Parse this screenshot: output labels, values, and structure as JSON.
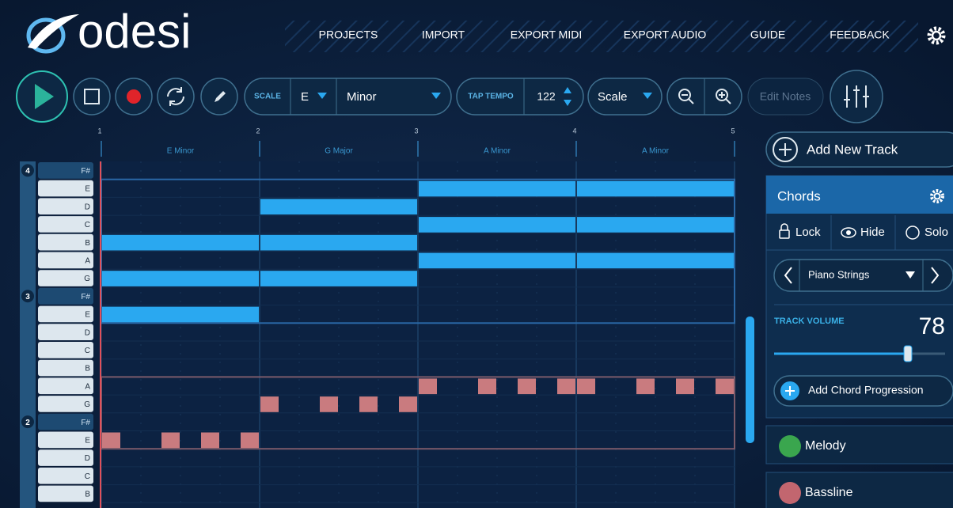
{
  "header": {
    "logo": "odesi",
    "nav": [
      "PROJECTS",
      "IMPORT",
      "EXPORT MIDI",
      "EXPORT AUDIO",
      "GUIDE",
      "FEEDBACK"
    ]
  },
  "toolbar": {
    "scale_label": "SCALE",
    "key": "E",
    "mode": "Minor",
    "tap_tempo": "TAP TEMPO",
    "tempo": "122",
    "view": "Scale",
    "edit_notes": "Edit Notes"
  },
  "timeline": {
    "bars": [
      "1",
      "2",
      "3",
      "4",
      "5"
    ],
    "chords": [
      "E Minor",
      "G Major",
      "A Minor",
      "A Minor"
    ]
  },
  "piano": {
    "octaves": [
      {
        "label": "4",
        "row": 0
      },
      {
        "label": "3",
        "row": 7
      },
      {
        "label": "2",
        "row": 14
      }
    ],
    "keys": [
      "F#",
      "E",
      "D",
      "C",
      "B",
      "A",
      "G",
      "F#",
      "E",
      "D",
      "C",
      "B",
      "A",
      "G",
      "F#",
      "E",
      "D",
      "C",
      "B"
    ]
  },
  "chord_notes": [
    {
      "row": 4,
      "start": 0,
      "length": 4
    },
    {
      "row": 6,
      "start": 0,
      "length": 4
    },
    {
      "row": 8,
      "start": 0,
      "length": 4
    },
    {
      "row": 2,
      "start": 4,
      "length": 4
    },
    {
      "row": 4,
      "start": 4,
      "length": 4
    },
    {
      "row": 6,
      "start": 4,
      "length": 4
    },
    {
      "row": 1,
      "start": 8,
      "length": 4
    },
    {
      "row": 3,
      "start": 8,
      "length": 4
    },
    {
      "row": 5,
      "start": 8,
      "length": 4
    },
    {
      "row": 1,
      "start": 12,
      "length": 4
    },
    {
      "row": 3,
      "start": 12,
      "length": 4
    },
    {
      "row": 5,
      "start": 12,
      "length": 4
    }
  ],
  "bass_notes": [
    {
      "row": 15,
      "start": 0,
      "length": 0.5
    },
    {
      "row": 15,
      "start": 1.5,
      "length": 0.5
    },
    {
      "row": 15,
      "start": 2.5,
      "length": 0.5
    },
    {
      "row": 15,
      "start": 3.5,
      "length": 0.5
    },
    {
      "row": 13,
      "start": 4,
      "length": 0.5
    },
    {
      "row": 13,
      "start": 5.5,
      "length": 0.5
    },
    {
      "row": 13,
      "start": 6.5,
      "length": 0.5
    },
    {
      "row": 13,
      "start": 7.5,
      "length": 0.5
    },
    {
      "row": 12,
      "start": 8,
      "length": 0.5
    },
    {
      "row": 12,
      "start": 9.5,
      "length": 0.5
    },
    {
      "row": 12,
      "start": 10.5,
      "length": 0.5
    },
    {
      "row": 12,
      "start": 11.5,
      "length": 0.5
    },
    {
      "row": 12,
      "start": 12,
      "length": 0.5
    },
    {
      "row": 12,
      "start": 13.5,
      "length": 0.5
    },
    {
      "row": 12,
      "start": 14.5,
      "length": 0.5
    },
    {
      "row": 12,
      "start": 15.5,
      "length": 0.5
    }
  ],
  "sidebar": {
    "add_track": "Add New Track",
    "track_name": "Chords",
    "lock": "Lock",
    "hide": "Hide",
    "solo": "Solo",
    "instrument": "Piano Strings",
    "volume_label": "TRACK VOLUME",
    "volume": "78",
    "add_progression": "Add Chord Progression",
    "tracks": [
      {
        "name": "Melody",
        "color": "#3aa64e"
      },
      {
        "name": "Bassline",
        "color": "#c2666f"
      }
    ]
  }
}
